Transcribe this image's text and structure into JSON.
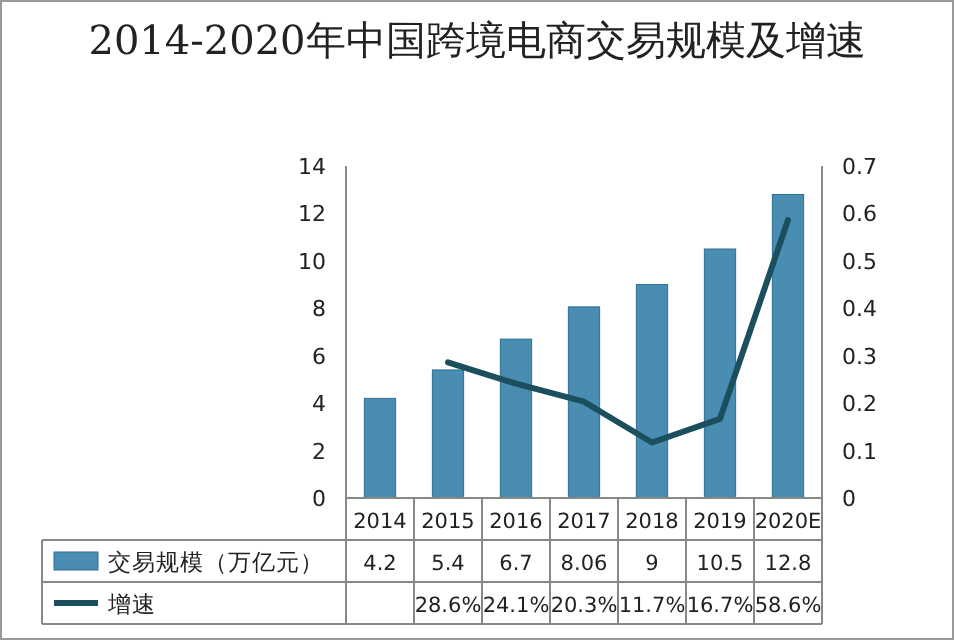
{
  "chart_data": {
    "type": "bar",
    "title": "2014-2020年中国跨境电商交易规模及增速",
    "categories": [
      "2014",
      "2015",
      "2016",
      "2017",
      "2018",
      "2019",
      "2020E"
    ],
    "series": [
      {
        "name": "交易规模（万亿元）",
        "color": "#4a8db3",
        "values": [
          4.2,
          5.4,
          6.7,
          8.06,
          9,
          10.5,
          12.8
        ],
        "value_labels": [
          "4.2",
          "5.4",
          "6.7",
          "8.06",
          "9",
          "10.5",
          "12.8"
        ]
      },
      {
        "name": "增速",
        "type": "line",
        "axis": "y2",
        "color": "#1b4f5e",
        "values": [
          null,
          0.286,
          0.241,
          0.203,
          0.117,
          0.167,
          0.586
        ],
        "value_labels": [
          null,
          "28.6%",
          "24.1%",
          "20.3%",
          "11.7%",
          "16.7%",
          "58.6%"
        ]
      }
    ],
    "ylim": [
      0,
      14
    ],
    "yticks": [
      0,
      2,
      4,
      6,
      8,
      10,
      12,
      14
    ],
    "y2lim": [
      0,
      0.7
    ],
    "y2ticks": [
      0,
      0.1,
      0.2,
      0.3,
      0.4,
      0.5,
      0.6,
      0.7
    ],
    "legend": "bottom"
  }
}
